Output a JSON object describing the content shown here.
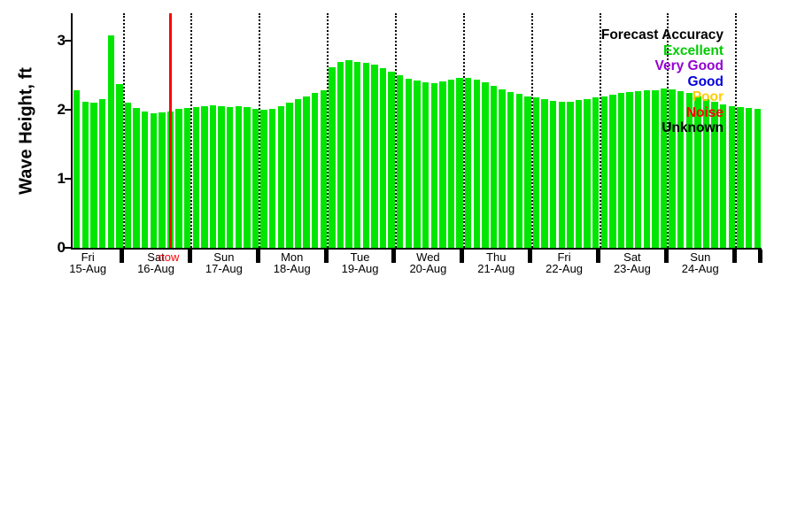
{
  "chart_data": {
    "type": "bar",
    "title": "",
    "ylabel": "Wave Height, ft",
    "ylim": [
      0,
      3.4
    ],
    "yticks": [
      0,
      1,
      2,
      3
    ],
    "grid": "vertical-dotted-day-boundaries",
    "bar_color": "#00e600",
    "bars_per_day": 8,
    "bars_before_first_boundary": 6,
    "days": [
      {
        "day": "Fri",
        "date": "15-Aug"
      },
      {
        "day": "Sat",
        "date": "16-Aug"
      },
      {
        "day": "Sun",
        "date": "17-Aug"
      },
      {
        "day": "Mon",
        "date": "18-Aug"
      },
      {
        "day": "Tue",
        "date": "19-Aug"
      },
      {
        "day": "Wed",
        "date": "20-Aug"
      },
      {
        "day": "Thu",
        "date": "21-Aug"
      },
      {
        "day": "Fri",
        "date": "22-Aug"
      },
      {
        "day": "Sat",
        "date": "23-Aug"
      },
      {
        "day": "Sun",
        "date": "24-Aug"
      }
    ],
    "values": [
      2.28,
      2.12,
      2.1,
      2.16,
      3.08,
      2.38,
      2.1,
      2.03,
      1.97,
      1.95,
      1.96,
      1.98,
      2.01,
      2.03,
      2.04,
      2.05,
      2.06,
      2.05,
      2.04,
      2.05,
      2.04,
      2.02,
      2.0,
      2.02,
      2.05,
      2.1,
      2.15,
      2.2,
      2.25,
      2.28,
      2.62,
      2.7,
      2.72,
      2.7,
      2.68,
      2.65,
      2.6,
      2.55,
      2.5,
      2.45,
      2.42,
      2.4,
      2.39,
      2.41,
      2.44,
      2.46,
      2.47,
      2.44,
      2.4,
      2.35,
      2.3,
      2.26,
      2.23,
      2.2,
      2.18,
      2.15,
      2.13,
      2.12,
      2.12,
      2.14,
      2.16,
      2.18,
      2.2,
      2.22,
      2.24,
      2.26,
      2.27,
      2.28,
      2.29,
      2.31,
      2.3,
      2.27,
      2.24,
      2.2,
      2.16,
      2.12,
      2.08,
      2.05,
      2.04,
      2.03,
      2.02
    ],
    "now": {
      "label": "now",
      "color": "#ff0000",
      "bar_position": 11.5
    },
    "legend": {
      "title": "Forecast Accuracy",
      "entries": [
        {
          "label": "Excellent",
          "color": "#00cc00"
        },
        {
          "label": "Very Good",
          "color": "#9400d3"
        },
        {
          "label": "Good",
          "color": "#0000dd"
        },
        {
          "label": "Poor",
          "color": "#ffcc00"
        },
        {
          "label": "Noise",
          "color": "#ff0000"
        },
        {
          "label": "Unknown",
          "color": "#000000"
        }
      ]
    }
  }
}
